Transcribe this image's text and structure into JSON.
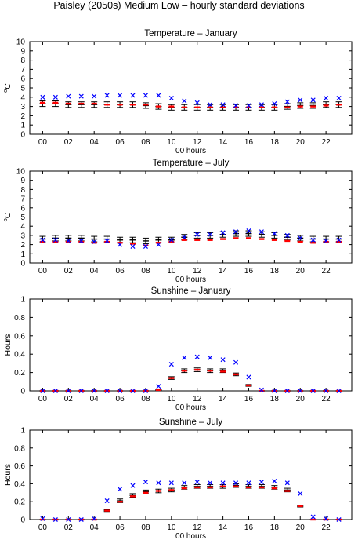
{
  "title": "Paisley (2050s) Medium Low – hourly standard deviations",
  "colors": {
    "x_marker": "#0000ff",
    "red_marker": "#ff0000",
    "error_bar": "#000000"
  },
  "chart_data": [
    {
      "type": "scatter",
      "title": "Temperature – January",
      "xlabel": "00 hours",
      "ylabel_base": "C",
      "ylabel_sup": "o",
      "ylim": [
        0,
        10
      ],
      "yticks": [
        0,
        1,
        2,
        3,
        4,
        5,
        6,
        7,
        8,
        9,
        10
      ],
      "xlim": [
        -1,
        24
      ],
      "xticks": [
        "00",
        "02",
        "04",
        "06",
        "08",
        "10",
        "12",
        "14",
        "16",
        "18",
        "20",
        "22"
      ],
      "x": [
        0,
        1,
        2,
        3,
        4,
        5,
        6,
        7,
        8,
        9,
        10,
        11,
        12,
        13,
        14,
        15,
        16,
        17,
        18,
        19,
        20,
        21,
        22,
        23
      ],
      "series": [
        {
          "values": [
            4.0,
            4.0,
            4.1,
            4.1,
            4.1,
            4.2,
            4.2,
            4.2,
            4.2,
            4.2,
            3.9,
            3.6,
            3.4,
            3.2,
            3.2,
            3.1,
            3.1,
            3.2,
            3.3,
            3.5,
            3.7,
            3.7,
            3.9,
            3.9
          ]
        },
        {
          "values": [
            3.4,
            3.4,
            3.3,
            3.3,
            3.3,
            3.2,
            3.2,
            3.2,
            3.2,
            3.0,
            3.0,
            2.9,
            2.9,
            2.9,
            2.9,
            2.9,
            2.9,
            2.9,
            2.9,
            2.9,
            3.0,
            3.0,
            3.1,
            3.2
          ]
        },
        {
          "values": [
            3.3,
            3.3,
            3.2,
            3.2,
            3.2,
            3.2,
            3.2,
            3.2,
            3.1,
            3.0,
            2.9,
            2.9,
            2.9,
            2.9,
            2.9,
            2.9,
            2.9,
            2.9,
            2.9,
            3.0,
            3.1,
            3.1,
            3.2,
            3.2
          ],
          "err": [
            0.3,
            0.3,
            0.3,
            0.3,
            0.3,
            0.3,
            0.3,
            0.3,
            0.3,
            0.3,
            0.3,
            0.3,
            0.3,
            0.3,
            0.3,
            0.3,
            0.3,
            0.3,
            0.3,
            0.3,
            0.3,
            0.3,
            0.3,
            0.3
          ]
        }
      ]
    },
    {
      "type": "scatter",
      "title": "Temperature – July",
      "xlabel": "00 hours",
      "ylabel_base": "C",
      "ylabel_sup": "o",
      "ylim": [
        0,
        10
      ],
      "yticks": [
        0,
        1,
        2,
        3,
        4,
        5,
        6,
        7,
        8,
        9,
        10
      ],
      "xlim": [
        -1,
        24
      ],
      "xticks": [
        "00",
        "02",
        "04",
        "06",
        "08",
        "10",
        "12",
        "14",
        "16",
        "18",
        "20",
        "22"
      ],
      "x": [
        0,
        1,
        2,
        3,
        4,
        5,
        6,
        7,
        8,
        9,
        10,
        11,
        12,
        13,
        14,
        15,
        16,
        17,
        18,
        19,
        20,
        21,
        22,
        23
      ],
      "series": [
        {
          "values": [
            2.5,
            2.5,
            2.4,
            2.4,
            2.3,
            2.4,
            2.0,
            1.8,
            1.8,
            2.0,
            2.5,
            2.8,
            3.1,
            3.1,
            3.3,
            3.4,
            3.5,
            3.4,
            3.2,
            3.0,
            2.7,
            2.5,
            2.4,
            2.5
          ]
        },
        {
          "values": [
            2.3,
            2.3,
            2.3,
            2.3,
            2.2,
            2.3,
            2.2,
            2.1,
            1.9,
            2.2,
            2.3,
            2.5,
            2.5,
            2.5,
            2.6,
            2.7,
            2.7,
            2.6,
            2.5,
            2.4,
            2.3,
            2.2,
            2.3,
            2.3
          ]
        },
        {
          "values": [
            2.6,
            2.7,
            2.7,
            2.7,
            2.6,
            2.6,
            2.5,
            2.5,
            2.4,
            2.5,
            2.5,
            2.8,
            3.0,
            3.0,
            3.1,
            3.2,
            3.2,
            3.1,
            3.0,
            2.8,
            2.7,
            2.6,
            2.6,
            2.6
          ],
          "err": [
            0.3,
            0.3,
            0.3,
            0.3,
            0.3,
            0.3,
            0.3,
            0.3,
            0.3,
            0.3,
            0.3,
            0.3,
            0.3,
            0.3,
            0.3,
            0.3,
            0.3,
            0.3,
            0.3,
            0.3,
            0.3,
            0.3,
            0.3,
            0.3
          ]
        }
      ]
    },
    {
      "type": "scatter",
      "title": "Sunshine – January",
      "xlabel": "00 hours",
      "ylabel_base": "Hours",
      "ylabel_sup": "",
      "ylim": [
        0,
        1
      ],
      "yticks": [
        0,
        0.2,
        0.4,
        0.6,
        0.8,
        1
      ],
      "xlim": [
        -1,
        24
      ],
      "xticks": [
        "00",
        "02",
        "04",
        "06",
        "08",
        "10",
        "12",
        "14",
        "16",
        "18",
        "20",
        "22"
      ],
      "x": [
        0,
        1,
        2,
        3,
        4,
        5,
        6,
        7,
        8,
        9,
        10,
        11,
        12,
        13,
        14,
        15,
        16,
        17,
        18,
        19,
        20,
        21,
        22,
        23
      ],
      "series": [
        {
          "values": [
            0,
            0,
            0,
            0,
            0,
            0,
            0,
            0,
            0,
            0.05,
            0.29,
            0.36,
            0.37,
            0.36,
            0.34,
            0.31,
            0.15,
            0.01,
            0,
            0,
            0,
            0,
            0,
            0
          ]
        },
        {
          "values": [
            0,
            0,
            0,
            0,
            0,
            0,
            0,
            0,
            0,
            0.01,
            0.14,
            0.22,
            0.23,
            0.22,
            0.21,
            0.18,
            0.06,
            0,
            0,
            0,
            0,
            0,
            0,
            0
          ]
        },
        {
          "values": [
            0,
            0,
            0,
            0,
            0,
            0,
            0,
            0,
            0,
            0.01,
            0.14,
            0.22,
            0.23,
            0.22,
            0.22,
            0.18,
            0.06,
            0,
            0,
            0,
            0,
            0,
            0,
            0
          ],
          "err": [
            0,
            0,
            0,
            0,
            0,
            0,
            0,
            0,
            0,
            0.005,
            0.015,
            0.02,
            0.02,
            0.02,
            0.02,
            0.015,
            0.01,
            0,
            0,
            0,
            0,
            0,
            0,
            0
          ]
        }
      ]
    },
    {
      "type": "scatter",
      "title": "Sunshine – July",
      "xlabel": "00 hours",
      "ylabel_base": "Hours",
      "ylabel_sup": "",
      "ylim": [
        0,
        1
      ],
      "yticks": [
        0,
        0.2,
        0.4,
        0.6,
        0.8,
        1
      ],
      "xlim": [
        -1,
        24
      ],
      "xticks": [
        "00",
        "02",
        "04",
        "06",
        "08",
        "10",
        "12",
        "14",
        "16",
        "18",
        "20",
        "22"
      ],
      "x": [
        0,
        1,
        2,
        3,
        4,
        5,
        6,
        7,
        8,
        9,
        10,
        11,
        12,
        13,
        14,
        15,
        16,
        17,
        18,
        19,
        20,
        21,
        22,
        23
      ],
      "series": [
        {
          "values": [
            0.01,
            0,
            0,
            0,
            0.01,
            0.21,
            0.34,
            0.38,
            0.42,
            0.41,
            0.41,
            0.41,
            0.42,
            0.41,
            0.41,
            0.41,
            0.41,
            0.42,
            0.43,
            0.41,
            0.29,
            0.03,
            0.01,
            0
          ]
        },
        {
          "values": [
            0,
            0,
            0,
            0,
            0,
            0.1,
            0.2,
            0.26,
            0.3,
            0.32,
            0.33,
            0.35,
            0.36,
            0.36,
            0.37,
            0.37,
            0.36,
            0.36,
            0.35,
            0.32,
            0.15,
            0,
            0,
            0
          ]
        },
        {
          "values": [
            0,
            0,
            0,
            0,
            0,
            0.1,
            0.21,
            0.27,
            0.31,
            0.32,
            0.33,
            0.36,
            0.37,
            0.37,
            0.37,
            0.38,
            0.37,
            0.37,
            0.36,
            0.33,
            0.15,
            0,
            0,
            0
          ],
          "err": [
            0,
            0,
            0,
            0,
            0,
            0.01,
            0.02,
            0.02,
            0.02,
            0.02,
            0.02,
            0.02,
            0.02,
            0.02,
            0.02,
            0.02,
            0.02,
            0.02,
            0.02,
            0.02,
            0.01,
            0,
            0,
            0
          ]
        }
      ]
    }
  ]
}
